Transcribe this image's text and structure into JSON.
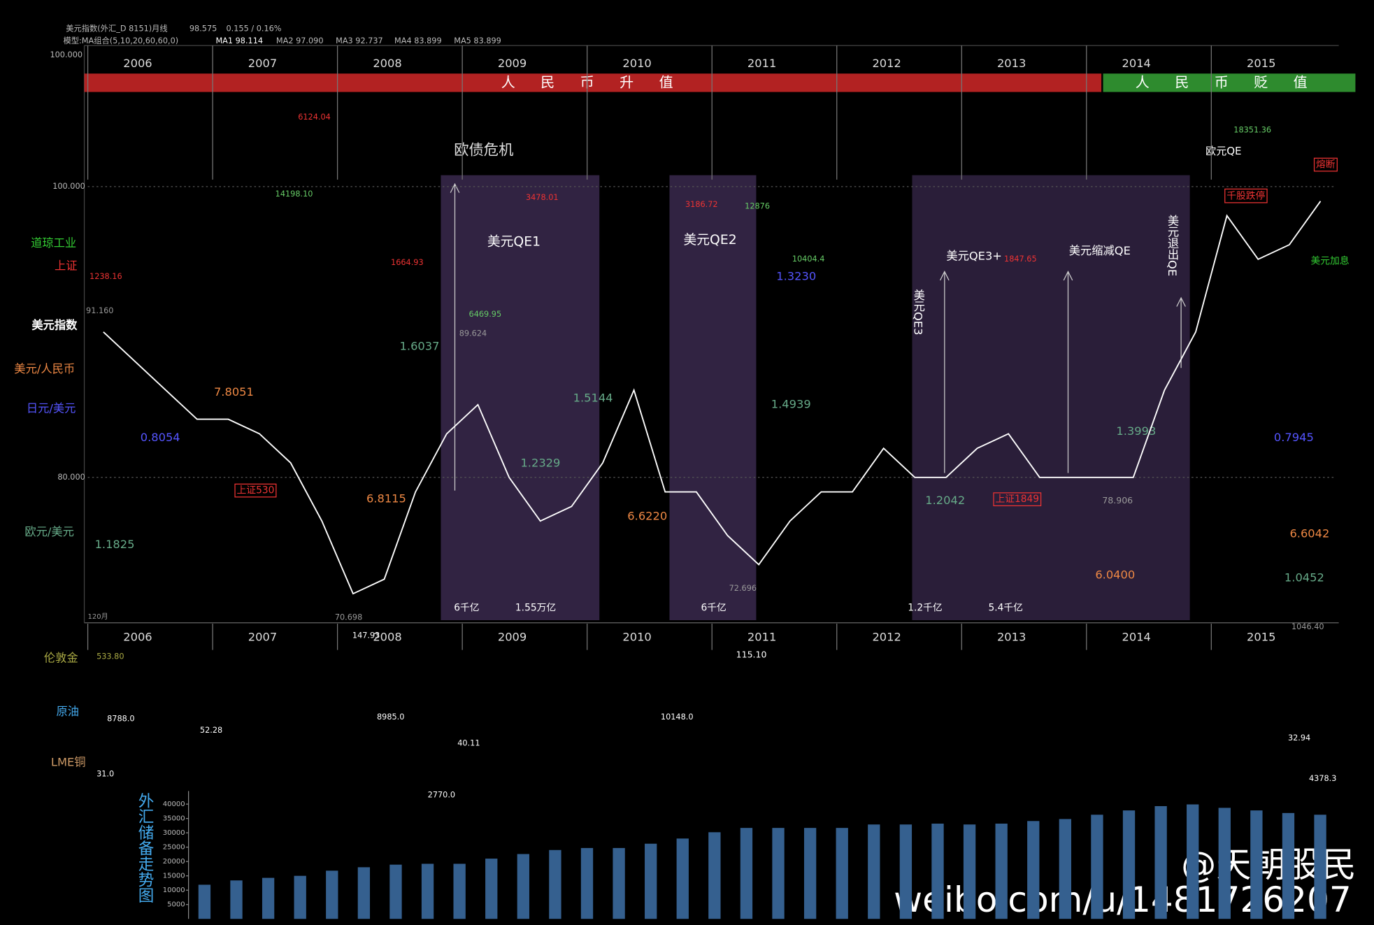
{
  "header": {
    "title": "美元指数(外汇_D 8151)月线",
    "price": "98.575",
    "change": "0.155 / 0.16%",
    "model": "模型:MA组合(5,10,20,60,60,0)",
    "ma": [
      "MA1 98.114",
      "MA2 97.090",
      "MA3 92.737",
      "MA4 83.899",
      "MA5 83.899"
    ],
    "top_scale": "100.000"
  },
  "bands": [
    "人 民 币 升 值",
    "人 民 币 贬 值"
  ],
  "left_labels": [
    "道琼工业",
    "上证",
    "美元/人民币",
    "日元/美元",
    "欧元/美元",
    "伦敦金",
    "原油",
    "LME铜"
  ],
  "labels": [
    "欧债危机",
    "美元QE1",
    "美元QE2",
    "美元QE3+",
    "美元QE3",
    "美元缩减QE",
    "美元退出QE",
    "欧元QE",
    "美元加息",
    "上证530",
    "上证1849",
    "千股跌停",
    "熔断",
    "6千亿",
    "1.55万亿",
    "6千亿",
    "1.2千亿",
    "5.4千亿",
    "6124.04",
    "14198.10",
    "1664.93",
    "1238.16",
    "3478.01",
    "3186.72",
    "12876",
    "10404.4",
    "1847.65",
    "18351.36",
    "6469.95",
    "89.624",
    "91.160",
    "1.3230",
    "1.6037",
    "7.8051",
    "0.8054",
    "1.5144",
    "1.2329",
    "6.8115",
    "6.6220",
    "1.4939",
    "1.2042",
    "1.3993",
    "78.906",
    "0.7945",
    "6.6042",
    "6.0400",
    "1.0452",
    "1.1825",
    "72.696",
    "70.698",
    "1046.40",
    "533.80",
    "8788.0",
    "52.28",
    "8985.0",
    "147.93",
    "10148.0",
    "115.10",
    "40.11",
    "2770.0",
    "32.94",
    "4378.3",
    "31.0",
    "120月"
  ],
  "watermark": [
    "@天朝股民",
    "weibo.com/u/1481726207"
  ],
  "chart_data": [
    {
      "type": "line",
      "x": [
        2006.125,
        2006.375,
        2006.625,
        2006.875,
        2007.125,
        2007.375,
        2007.625,
        2007.875,
        2008.125,
        2008.375,
        2008.625,
        2008.875,
        2009.125,
        2009.375,
        2009.625,
        2009.875,
        2010.125,
        2010.375,
        2010.625,
        2010.875,
        2011.125,
        2011.375,
        2011.625,
        2011.875,
        2012.125,
        2012.375,
        2012.625,
        2012.875,
        2013.125,
        2013.375,
        2013.625,
        2013.875,
        2014.125,
        2014.375,
        2014.625,
        2014.875,
        2015.125,
        2015.375,
        2015.625,
        2015.875
      ],
      "series": [
        {
          "name": "美元指数",
          "color": "#ffffff",
          "values": [
            90,
            88,
            86,
            84,
            84,
            83,
            81,
            77,
            72,
            73,
            79,
            83,
            85,
            80,
            77,
            78,
            81,
            86,
            79,
            79,
            76,
            74,
            77,
            79,
            79,
            82,
            80,
            80,
            82,
            83,
            80,
            80,
            80,
            80,
            86,
            90,
            98,
            95,
            96,
            99
          ]
        }
      ],
      "xlim": [
        2006,
        2016
      ],
      "xticks": [
        2006,
        2007,
        2008,
        2009,
        2010,
        2011,
        2012,
        2013,
        2014,
        2015
      ],
      "ylim": [
        70,
        100
      ],
      "yticks": [
        {
          "value": 100,
          "label": "100.000"
        },
        {
          "value": 80,
          "label": "80.000"
        }
      ]
    },
    {
      "type": "bar",
      "title": "外汇储备走势图",
      "color": "#35608f",
      "categories": [
        null,
        null,
        null,
        null,
        null,
        null,
        null,
        null,
        null,
        null,
        null,
        null,
        null,
        null,
        null,
        null,
        null,
        null,
        null,
        null,
        null,
        null,
        null,
        null,
        null,
        null,
        null,
        null,
        null,
        null,
        null,
        null,
        null,
        null,
        null,
        null
      ],
      "values": [
        11900,
        13400,
        14300,
        15000,
        16800,
        18000,
        18900,
        19200,
        19200,
        21000,
        22600,
        24000,
        24700,
        24700,
        26200,
        28000,
        30200,
        31700,
        31700,
        31700,
        31700,
        32900,
        32900,
        33200,
        32900,
        33200,
        34100,
        34800,
        36300,
        37800,
        39300,
        39900,
        38700,
        37800,
        36900,
        36300
      ],
      "ylim": [
        0,
        40000
      ],
      "yticks": [
        5000,
        10000,
        15000,
        20000,
        25000,
        30000,
        35000,
        40000
      ]
    }
  ]
}
